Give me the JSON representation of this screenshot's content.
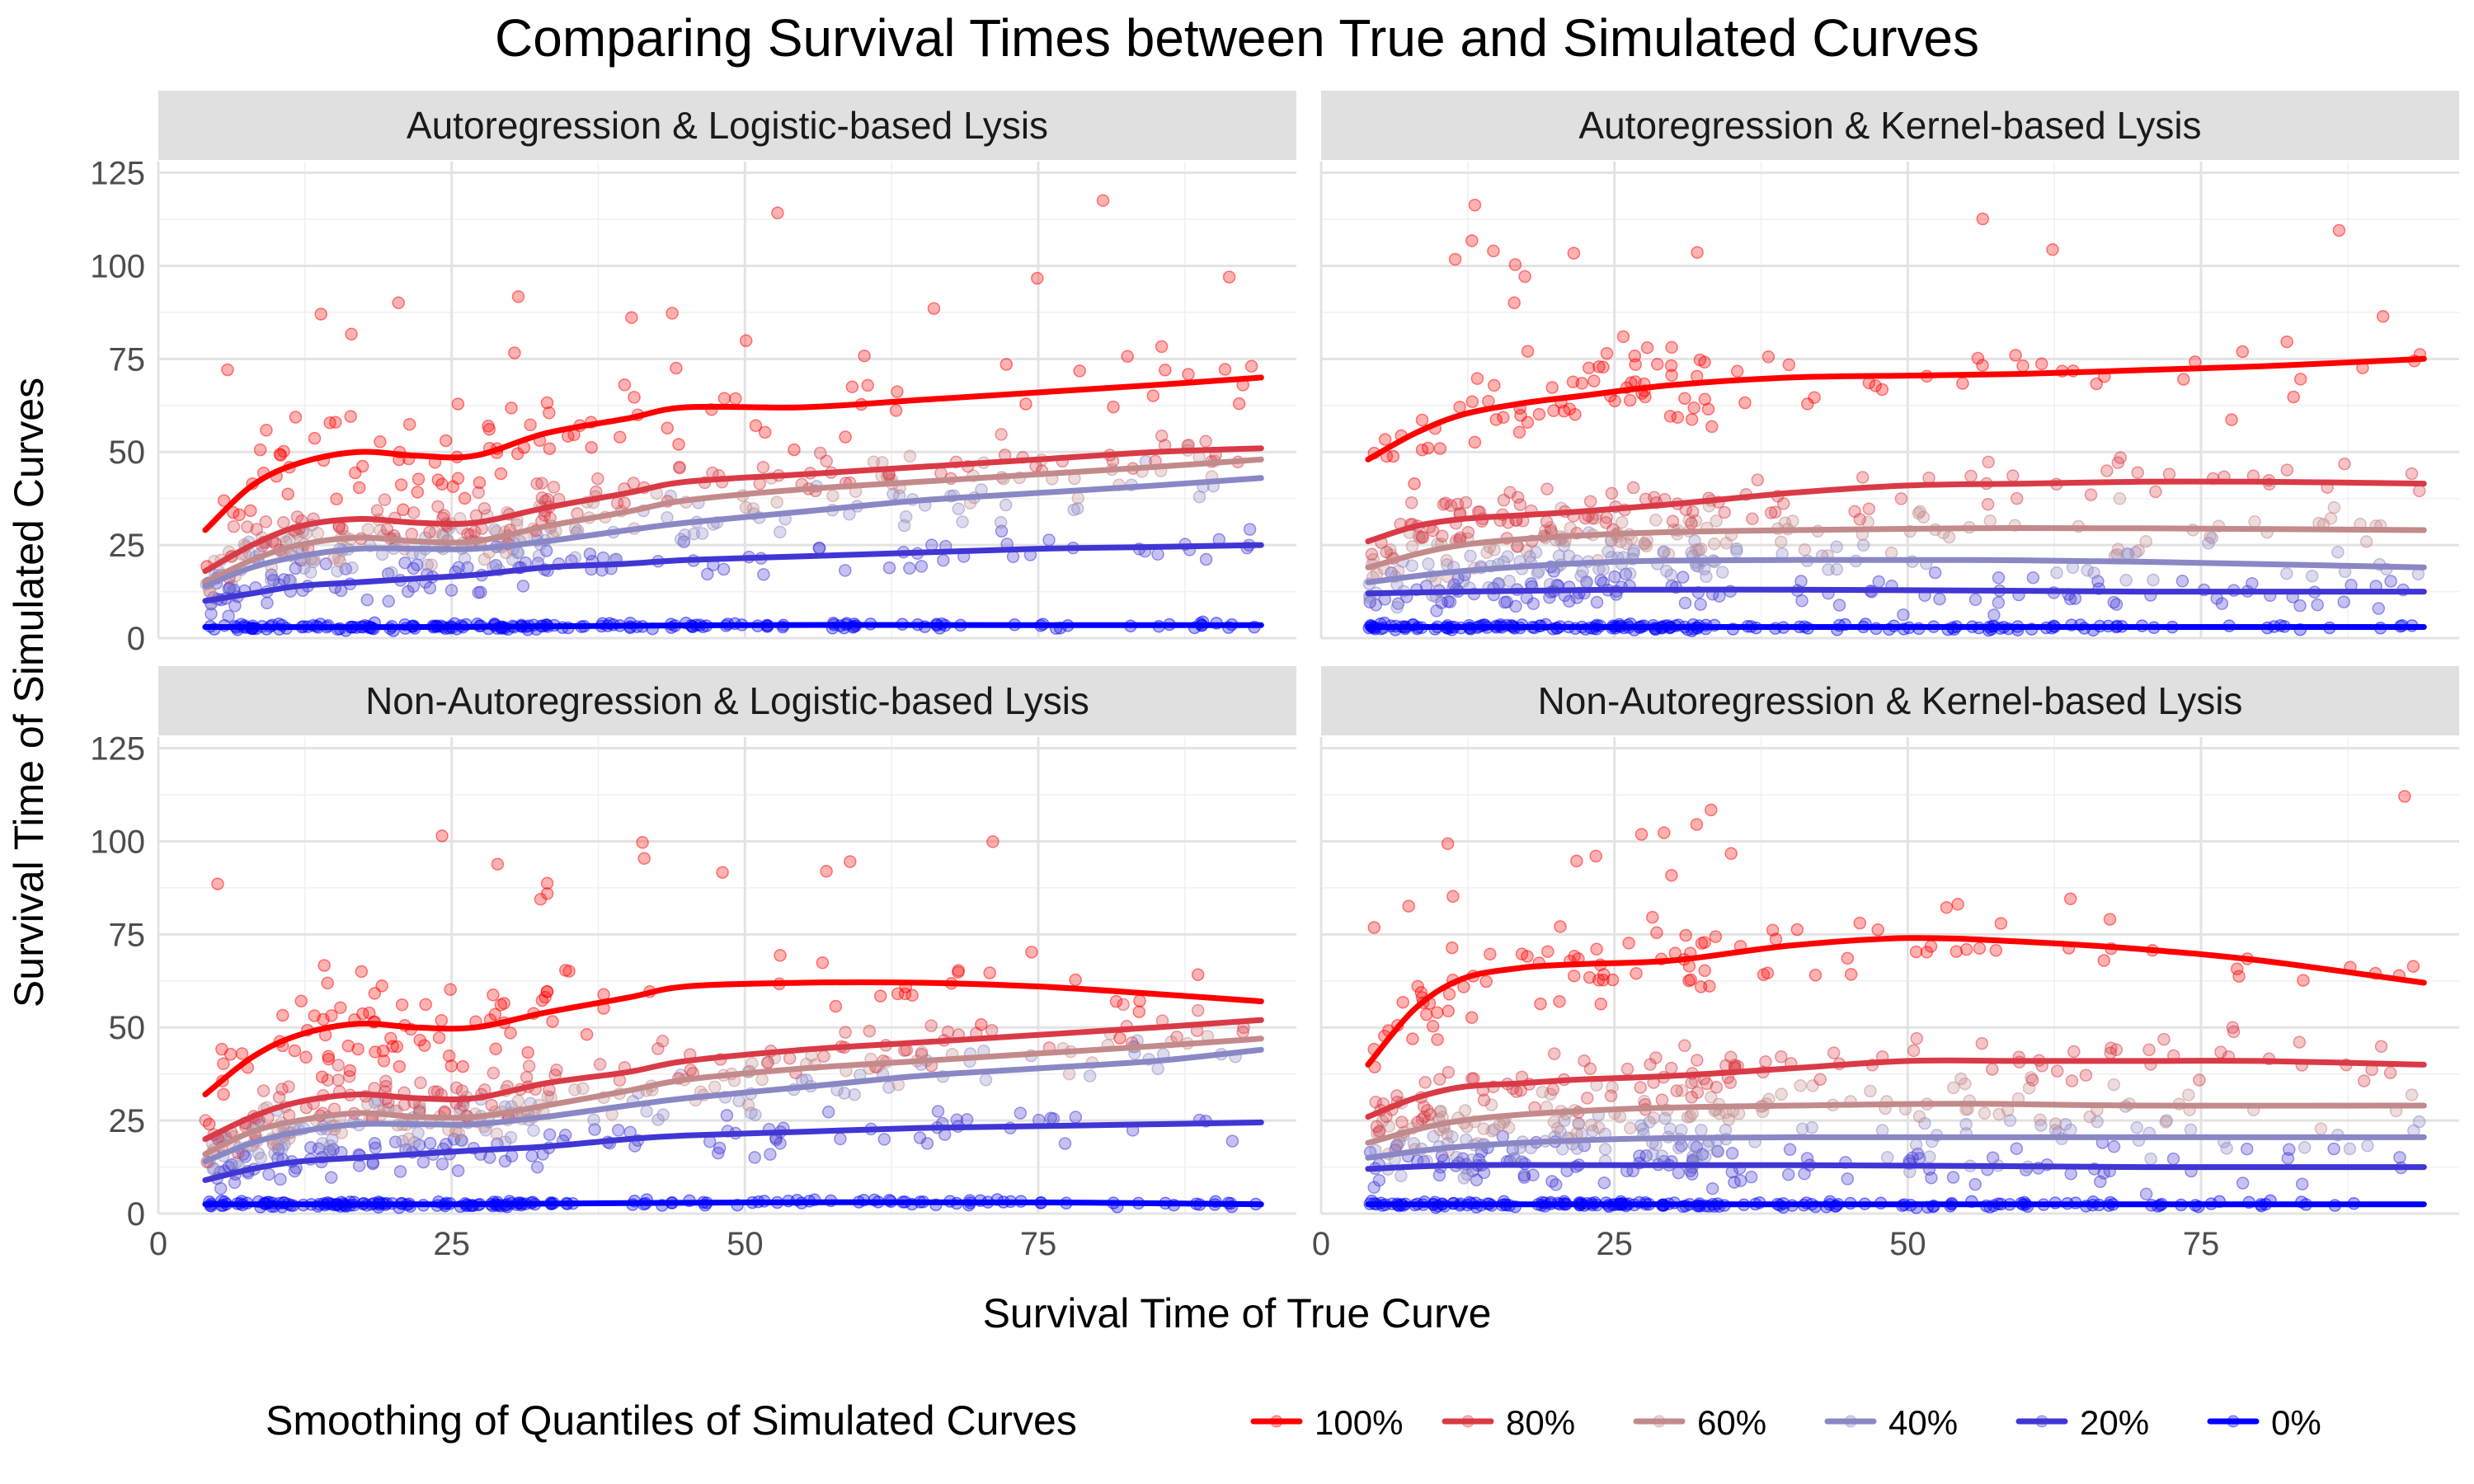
{
  "chart_data": {
    "type": "scatter",
    "title": "Comparing Survival Times between True and Simulated Curves",
    "xlabel": "Survival Time of True Curve",
    "ylabel": "Survival Time of Simulated Curves",
    "xlim": [
      0,
      97
    ],
    "ylim": [
      0,
      128
    ],
    "x_ticks": [
      0,
      25,
      50,
      75
    ],
    "y_ticks": [
      0,
      25,
      50,
      75,
      100,
      125
    ],
    "grid": true,
    "legend": {
      "title": "Smoothing of Quantiles of Simulated Curves",
      "position": "bottom",
      "entries": [
        {
          "label": "100%",
          "color": "#ff0000"
        },
        {
          "label": "80%",
          "color": "#d93a46"
        },
        {
          "label": "60%",
          "color": "#c38a8b"
        },
        {
          "label": "40%",
          "color": "#8a87c5"
        },
        {
          "label": "20%",
          "color": "#4036d5"
        },
        {
          "label": "0%",
          "color": "#0000ff"
        }
      ]
    },
    "panels": [
      {
        "label": "Autoregression & Logistic-based Lysis",
        "series": [
          {
            "quantile": "100%",
            "x": [
              4,
              8,
              12,
              17,
              22,
              27,
              33,
              40,
              45,
              55,
              65,
              75,
              85,
              94
            ],
            "y": [
              29,
              41,
              47,
              50,
              49,
              49,
              55,
              59,
              62,
              62,
              64,
              66,
              68,
              70
            ]
          },
          {
            "quantile": "80%",
            "x": [
              4,
              8,
              12,
              17,
              22,
              27,
              33,
              40,
              45,
              55,
              65,
              75,
              85,
              94
            ],
            "y": [
              18,
              25,
              30,
              32,
              31,
              31,
              35,
              39,
              42,
              44,
              46,
              48,
              50,
              51
            ]
          },
          {
            "quantile": "60%",
            "x": [
              4,
              8,
              12,
              17,
              22,
              27,
              33,
              40,
              45,
              55,
              65,
              75,
              85,
              94
            ],
            "y": [
              15,
              21,
              25,
              27,
              26,
              26,
              30,
              34,
              37,
              40,
              42,
              44,
              46,
              48
            ]
          },
          {
            "quantile": "40%",
            "x": [
              4,
              8,
              12,
              17,
              22,
              27,
              33,
              40,
              45,
              55,
              65,
              75,
              85,
              94
            ],
            "y": [
              14,
              19,
              22,
              24,
              24,
              24,
              26,
              29,
              31,
              34,
              37,
              39,
              41,
              43
            ]
          },
          {
            "quantile": "20%",
            "x": [
              4,
              8,
              12,
              17,
              22,
              27,
              33,
              40,
              45,
              55,
              65,
              75,
              85,
              94
            ],
            "y": [
              10,
              12,
              14,
              15,
              16,
              17,
              19,
              20,
              21,
              22,
              23,
              24,
              24.5,
              25
            ]
          },
          {
            "quantile": "0%",
            "x": [
              4,
              25,
              50,
              75,
              94
            ],
            "y": [
              3,
              3,
              3.5,
              3.5,
              3.5
            ]
          }
        ]
      },
      {
        "label": "Autoregression & Kernel-based Lysis",
        "series": [
          {
            "quantile": "100%",
            "x": [
              4,
              8,
              12,
              17,
              22,
              30,
              40,
              50,
              60,
              70,
              80,
              94
            ],
            "y": [
              48,
              55,
              60,
              63,
              65,
              68,
              70,
              70.5,
              71,
              72,
              73,
              75
            ]
          },
          {
            "quantile": "80%",
            "x": [
              4,
              8,
              12,
              17,
              22,
              30,
              40,
              50,
              60,
              70,
              80,
              94
            ],
            "y": [
              26,
              30,
              32,
              33,
              34,
              36,
              39,
              41,
              41.5,
              42,
              42,
              41.5
            ]
          },
          {
            "quantile": "60%",
            "x": [
              4,
              12,
              25,
              40,
              55,
              70,
              94
            ],
            "y": [
              19,
              25,
              28,
              29,
              29.5,
              29.5,
              29
            ]
          },
          {
            "quantile": "40%",
            "x": [
              4,
              12,
              25,
              40,
              55,
              70,
              94
            ],
            "y": [
              15,
              18,
              20.5,
              21,
              21,
              20.5,
              19
            ]
          },
          {
            "quantile": "20%",
            "x": [
              4,
              12,
              25,
              40,
              55,
              70,
              94
            ],
            "y": [
              12,
              12.5,
              13,
              13,
              12.8,
              12.5,
              12.5
            ]
          },
          {
            "quantile": "0%",
            "x": [
              4,
              25,
              50,
              75,
              94
            ],
            "y": [
              3,
              3,
              3,
              3,
              3
            ]
          }
        ]
      },
      {
        "label": "Non-Autoregression & Logistic-based Lysis",
        "series": [
          {
            "quantile": "100%",
            "x": [
              4,
              8,
              12,
              17,
              22,
              27,
              33,
              40,
              45,
              55,
              65,
              75,
              85,
              94
            ],
            "y": [
              32,
              42,
              48,
              51,
              50,
              50,
              54,
              58,
              61,
              62,
              62,
              61,
              59,
              57
            ]
          },
          {
            "quantile": "80%",
            "x": [
              4,
              8,
              12,
              17,
              22,
              27,
              33,
              40,
              45,
              55,
              65,
              75,
              85,
              94
            ],
            "y": [
              20,
              26,
              30,
              32,
              31,
              31,
              35,
              38,
              41,
              44,
              46,
              48,
              50,
              52
            ]
          },
          {
            "quantile": "60%",
            "x": [
              4,
              8,
              12,
              17,
              22,
              27,
              33,
              40,
              45,
              55,
              65,
              75,
              85,
              94
            ],
            "y": [
              16,
              22,
              25,
              27,
              26,
              26,
              29,
              33,
              36,
              39,
              41,
              43,
              45,
              47
            ]
          },
          {
            "quantile": "40%",
            "x": [
              4,
              8,
              12,
              17,
              22,
              27,
              33,
              40,
              45,
              55,
              65,
              75,
              85,
              94
            ],
            "y": [
              14,
              19,
              22,
              24,
              24,
              24,
              26,
              29,
              31,
              34,
              37,
              39,
              41,
              44
            ]
          },
          {
            "quantile": "20%",
            "x": [
              4,
              8,
              12,
              17,
              22,
              27,
              33,
              40,
              45,
              55,
              65,
              75,
              85,
              94
            ],
            "y": [
              9,
              12,
              14,
              15,
              16,
              17,
              18,
              20,
              21,
              22,
              23,
              23.5,
              24,
              24.5
            ]
          },
          {
            "quantile": "0%",
            "x": [
              4,
              25,
              50,
              75,
              94
            ],
            "y": [
              2.5,
              2.5,
              3,
              3,
              2.5
            ]
          }
        ]
      },
      {
        "label": "Non-Autoregression & Kernel-based Lysis",
        "series": [
          {
            "quantile": "100%",
            "x": [
              4,
              8,
              12,
              17,
              22,
              30,
              40,
              50,
              60,
              70,
              80,
              94
            ],
            "y": [
              40,
              55,
              63,
              66,
              67,
              68,
              72,
              74,
              73,
              71,
              68,
              62
            ]
          },
          {
            "quantile": "80%",
            "x": [
              4,
              8,
              12,
              17,
              22,
              30,
              40,
              50,
              60,
              70,
              80,
              94
            ],
            "y": [
              26,
              31,
              34,
              35,
              36,
              37,
              39,
              41,
              41,
              41,
              41,
              40
            ]
          },
          {
            "quantile": "60%",
            "x": [
              4,
              12,
              25,
              40,
              55,
              70,
              94
            ],
            "y": [
              19,
              25,
              28,
              29,
              29.5,
              29,
              29
            ]
          },
          {
            "quantile": "40%",
            "x": [
              4,
              12,
              25,
              40,
              55,
              70,
              94
            ],
            "y": [
              15,
              18,
              20,
              20.5,
              20.5,
              20.5,
              20.5
            ]
          },
          {
            "quantile": "20%",
            "x": [
              4,
              12,
              25,
              40,
              55,
              70,
              94
            ],
            "y": [
              12,
              13,
              13,
              13,
              12.8,
              12.5,
              12.5
            ]
          },
          {
            "quantile": "0%",
            "x": [
              4,
              25,
              50,
              75,
              94
            ],
            "y": [
              2.5,
              2.5,
              2.5,
              2.5,
              2.5
            ]
          }
        ]
      }
    ]
  }
}
